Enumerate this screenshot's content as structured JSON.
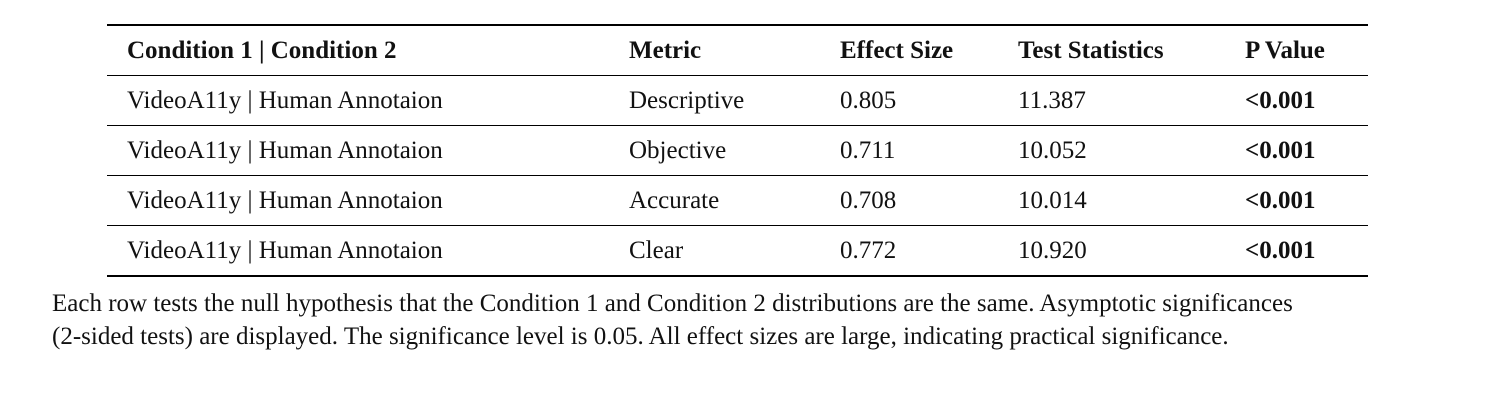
{
  "table": {
    "headers": [
      "Condition 1 | Condition 2",
      "Metric",
      "Effect Size",
      "Test Statistics",
      "P Value"
    ],
    "rows": [
      {
        "conditions": "VideoA11y | Human Annotaion",
        "metric": "Descriptive",
        "effect_size": "0.805",
        "test_statistics": "11.387",
        "p_value": "<0.001"
      },
      {
        "conditions": "VideoA11y | Human Annotaion",
        "metric": "Objective",
        "effect_size": "0.711",
        "test_statistics": "10.052",
        "p_value": "<0.001"
      },
      {
        "conditions": "VideoA11y | Human Annotaion",
        "metric": "Accurate",
        "effect_size": "0.708",
        "test_statistics": "10.014",
        "p_value": "<0.001"
      },
      {
        "conditions": "VideoA11y | Human Annotaion",
        "metric": "Clear",
        "effect_size": "0.772",
        "test_statistics": "10.920",
        "p_value": "<0.001"
      }
    ]
  },
  "caption": {
    "line1": "Each row tests the null hypothesis that the Condition 1 and Condition 2 distributions are the same. Asymptotic significances",
    "line2": "(2-sided tests) are displayed. The significance level is 0.05. All effect sizes are large, indicating practical significance."
  }
}
